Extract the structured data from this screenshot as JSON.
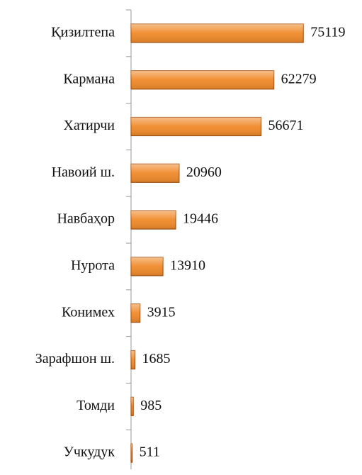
{
  "chart_data": {
    "type": "bar",
    "orientation": "horizontal",
    "categories": [
      "Қизилтепа",
      "Кармана",
      "Хатирчи",
      "Навоий ш.",
      "Навбаҳор",
      "Нурота",
      "Конимех",
      "Зарафшон ш.",
      "Томди",
      "Учкудук"
    ],
    "values": [
      75119,
      62279,
      56671,
      20960,
      19446,
      13910,
      3915,
      1685,
      985,
      511
    ],
    "color": "#f08a2a",
    "xlim": [
      0,
      80000
    ]
  }
}
